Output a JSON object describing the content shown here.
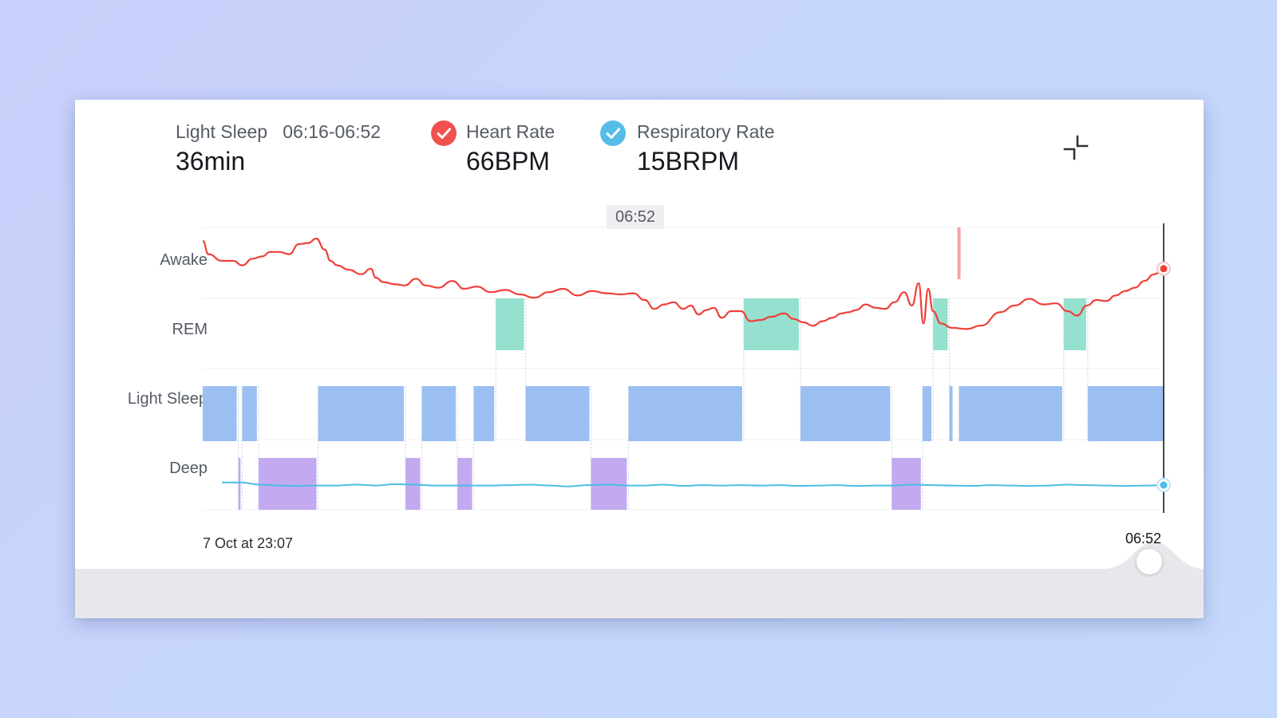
{
  "header": {
    "sleep_stat": {
      "label": "Light Sleep",
      "range": "06:16-06:52",
      "value": "36min"
    },
    "heart_rate": {
      "label": "Heart Rate",
      "value": "66BPM",
      "checked": true,
      "color": "#f0514f"
    },
    "respiratory_rate": {
      "label": "Respiratory Rate",
      "value": "15BRPM",
      "checked": true,
      "color": "#56bde9"
    }
  },
  "tooltip": {
    "time": "06:52"
  },
  "icons": {
    "checkbox": "check-icon",
    "collapse": "collapse-icon"
  },
  "colors": {
    "awake_line": "#ef4038",
    "rem": "#96e0cf",
    "light_sleep": "#9bbff1",
    "deep": "#c3a9f0",
    "respiratory_line": "#4bbde6",
    "cursor": "#1c1c1c"
  },
  "chart_data": {
    "type": "area",
    "categories": [
      "Awake",
      "REM",
      "Light Sleep",
      "Deep"
    ],
    "x_start_label": "7 Oct at 23:07",
    "x_end_label": "06:52",
    "hypnogram_segments": [
      {
        "stage": "Light Sleep",
        "from": 0.0,
        "to": 0.037
      },
      {
        "stage": "Deep",
        "from": 0.037,
        "to": 0.041
      },
      {
        "stage": "Light Sleep",
        "from": 0.041,
        "to": 0.058
      },
      {
        "stage": "Deep",
        "from": 0.058,
        "to": 0.12
      },
      {
        "stage": "Light Sleep",
        "from": 0.12,
        "to": 0.211
      },
      {
        "stage": "Deep",
        "from": 0.211,
        "to": 0.228
      },
      {
        "stage": "Light Sleep",
        "from": 0.228,
        "to": 0.265
      },
      {
        "stage": "Deep",
        "from": 0.265,
        "to": 0.282
      },
      {
        "stage": "Light Sleep",
        "from": 0.282,
        "to": 0.305
      },
      {
        "stage": "REM",
        "from": 0.305,
        "to": 0.336
      },
      {
        "stage": "Light Sleep",
        "from": 0.336,
        "to": 0.404
      },
      {
        "stage": "Deep",
        "from": 0.404,
        "to": 0.443
      },
      {
        "stage": "Light Sleep",
        "from": 0.443,
        "to": 0.563
      },
      {
        "stage": "REM",
        "from": 0.563,
        "to": 0.622
      },
      {
        "stage": "Light Sleep",
        "from": 0.622,
        "to": 0.717
      },
      {
        "stage": "Deep",
        "from": 0.717,
        "to": 0.749
      },
      {
        "stage": "Light Sleep",
        "from": 0.749,
        "to": 0.76
      },
      {
        "stage": "REM",
        "from": 0.76,
        "to": 0.777
      },
      {
        "stage": "Light Sleep",
        "from": 0.777,
        "to": 0.782
      },
      {
        "stage": "Light Sleep",
        "from": 0.787,
        "to": 0.896
      },
      {
        "stage": "REM",
        "from": 0.896,
        "to": 0.921
      },
      {
        "stage": "Light Sleep",
        "from": 0.921,
        "to": 1.0
      }
    ],
    "series": [
      {
        "name": "Heart Rate",
        "scale": "normalized_0_1",
        "x": [
          0.0,
          0.006,
          0.02,
          0.032,
          0.041,
          0.052,
          0.062,
          0.07,
          0.08,
          0.09,
          0.1,
          0.11,
          0.118,
          0.127,
          0.133,
          0.14,
          0.152,
          0.165,
          0.175,
          0.18,
          0.188,
          0.2,
          0.21,
          0.222,
          0.232,
          0.245,
          0.26,
          0.272,
          0.285,
          0.3,
          0.315,
          0.33,
          0.345,
          0.36,
          0.375,
          0.39,
          0.405,
          0.42,
          0.435,
          0.448,
          0.46,
          0.47,
          0.48,
          0.49,
          0.5,
          0.508,
          0.516,
          0.524,
          0.532,
          0.54,
          0.55,
          0.56,
          0.57,
          0.58,
          0.592,
          0.605,
          0.615,
          0.625,
          0.635,
          0.645,
          0.655,
          0.665,
          0.672,
          0.68,
          0.69,
          0.7,
          0.71,
          0.72,
          0.73,
          0.738,
          0.745,
          0.75,
          0.755,
          0.76,
          0.768,
          0.78,
          0.795,
          0.81,
          0.83,
          0.845,
          0.86,
          0.875,
          0.888,
          0.9,
          0.91,
          0.92,
          0.93,
          0.94,
          0.95,
          0.96,
          0.97,
          0.98,
          0.99,
          1.0
        ],
        "values": [
          0.88,
          0.76,
          0.7,
          0.7,
          0.66,
          0.72,
          0.74,
          0.78,
          0.78,
          0.76,
          0.85,
          0.86,
          0.9,
          0.8,
          0.7,
          0.66,
          0.62,
          0.58,
          0.63,
          0.55,
          0.51,
          0.49,
          0.48,
          0.54,
          0.48,
          0.46,
          0.52,
          0.45,
          0.47,
          0.42,
          0.44,
          0.4,
          0.37,
          0.42,
          0.45,
          0.39,
          0.43,
          0.41,
          0.4,
          0.41,
          0.35,
          0.27,
          0.31,
          0.33,
          0.27,
          0.3,
          0.22,
          0.26,
          0.28,
          0.19,
          0.25,
          0.25,
          0.16,
          0.17,
          0.2,
          0.23,
          0.18,
          0.15,
          0.12,
          0.16,
          0.19,
          0.23,
          0.24,
          0.26,
          0.31,
          0.28,
          0.27,
          0.33,
          0.42,
          0.3,
          0.5,
          0.14,
          0.45,
          0.25,
          0.14,
          0.1,
          0.09,
          0.12,
          0.24,
          0.3,
          0.36,
          0.31,
          0.32,
          0.25,
          0.21,
          0.3,
          0.35,
          0.34,
          0.39,
          0.43,
          0.46,
          0.52,
          0.58,
          0.63
        ]
      },
      {
        "name": "Respiratory Rate",
        "scale": "normalized_0_1",
        "x": [
          0.02,
          0.04,
          0.06,
          0.08,
          0.1,
          0.12,
          0.14,
          0.16,
          0.18,
          0.2,
          0.22,
          0.24,
          0.26,
          0.28,
          0.3,
          0.32,
          0.34,
          0.36,
          0.38,
          0.4,
          0.42,
          0.44,
          0.46,
          0.48,
          0.5,
          0.52,
          0.54,
          0.56,
          0.58,
          0.6,
          0.62,
          0.64,
          0.66,
          0.68,
          0.7,
          0.72,
          0.74,
          0.76,
          0.78,
          0.8,
          0.82,
          0.84,
          0.86,
          0.88,
          0.9,
          0.92,
          0.94,
          0.96,
          0.98,
          1.0
        ],
        "values": [
          0.55,
          0.55,
          0.5,
          0.48,
          0.47,
          0.48,
          0.48,
          0.5,
          0.48,
          0.51,
          0.5,
          0.48,
          0.48,
          0.48,
          0.48,
          0.49,
          0.5,
          0.48,
          0.46,
          0.49,
          0.5,
          0.48,
          0.48,
          0.5,
          0.47,
          0.49,
          0.48,
          0.49,
          0.48,
          0.49,
          0.47,
          0.48,
          0.49,
          0.47,
          0.48,
          0.48,
          0.5,
          0.49,
          0.48,
          0.47,
          0.49,
          0.48,
          0.47,
          0.48,
          0.5,
          0.49,
          0.48,
          0.47,
          0.48,
          0.49
        ]
      }
    ]
  }
}
